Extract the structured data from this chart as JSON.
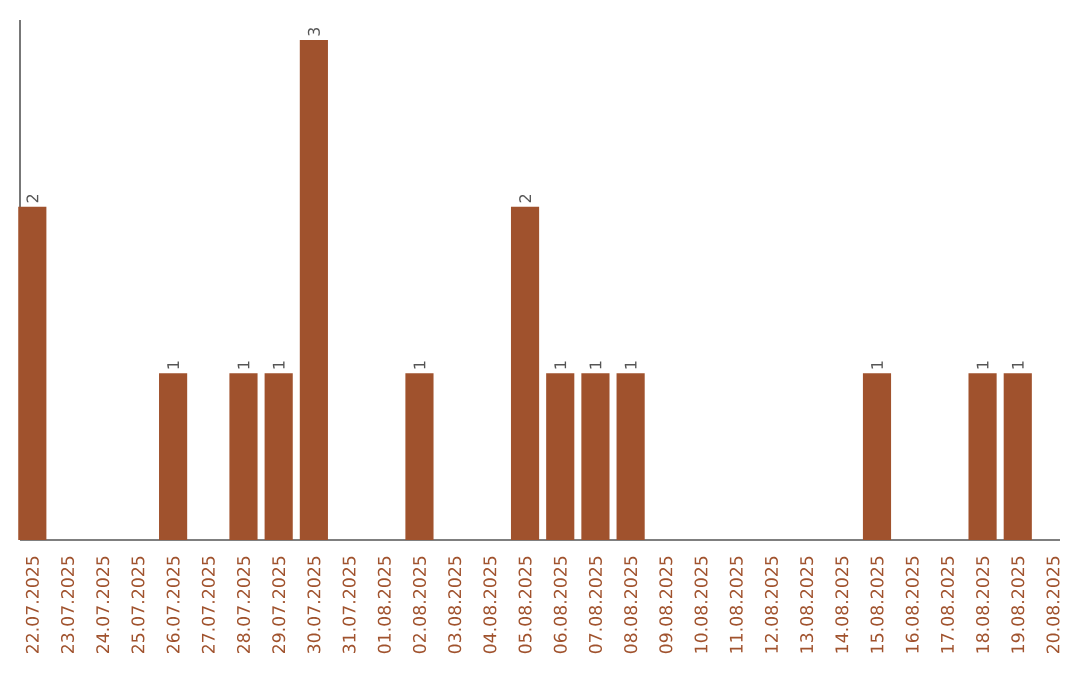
{
  "chart_data": {
    "type": "bar",
    "color": "#a0522d",
    "categories": [
      "22.07.2025",
      "23.07.2025",
      "24.07.2025",
      "25.07.2025",
      "26.07.2025",
      "27.07.2025",
      "28.07.2025",
      "29.07.2025",
      "30.07.2025",
      "31.07.2025",
      "01.08.2025",
      "02.08.2025",
      "03.08.2025",
      "04.08.2025",
      "05.08.2025",
      "06.08.2025",
      "07.08.2025",
      "08.08.2025",
      "09.08.2025",
      "10.08.2025",
      "11.08.2025",
      "12.08.2025",
      "13.08.2025",
      "14.08.2025",
      "15.08.2025",
      "16.08.2025",
      "17.08.2025",
      "18.08.2025",
      "19.08.2025",
      "20.08.2025"
    ],
    "values": [
      2,
      0,
      0,
      0,
      1,
      0,
      1,
      1,
      3,
      0,
      0,
      1,
      0,
      0,
      2,
      1,
      1,
      1,
      0,
      0,
      0,
      0,
      0,
      0,
      1,
      0,
      0,
      1,
      1,
      0
    ],
    "value_labels": [
      "2",
      null,
      null,
      null,
      "1",
      null,
      "1",
      "1",
      "3",
      null,
      null,
      "1",
      null,
      null,
      "2",
      "1",
      "1",
      "1",
      null,
      null,
      null,
      null,
      null,
      null,
      "1",
      null,
      null,
      "1",
      "1",
      null
    ]
  }
}
